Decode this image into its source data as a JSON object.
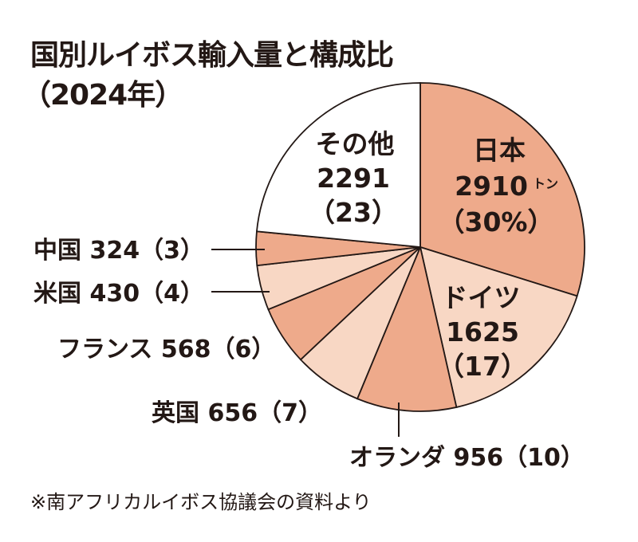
{
  "chart_data": {
    "type": "pie",
    "title": "国別ルイボス輸入量と構成比",
    "subtitle": "（2024年）",
    "unit": "トン",
    "slices": [
      {
        "label": "日本",
        "value": 2910,
        "percent": 30,
        "color": "#eeaa8b",
        "text": "2910",
        "pct_text": "（30%）"
      },
      {
        "label": "ドイツ",
        "value": 1625,
        "percent": 17,
        "color": "#f8d7c4",
        "text": "1625",
        "pct_text": "（17）"
      },
      {
        "label": "オランダ",
        "value": 956,
        "percent": 10,
        "color": "#eeaa8b",
        "text": "オランダ 956（10）"
      },
      {
        "label": "英国",
        "value": 656,
        "percent": 7,
        "color": "#f8d7c4",
        "text": "英国 656（7）"
      },
      {
        "label": "フランス",
        "value": 568,
        "percent": 6,
        "color": "#eeaa8b",
        "text": "フランス 568（6）"
      },
      {
        "label": "米国",
        "value": 430,
        "percent": 4,
        "color": "#f8d7c4",
        "text": "米国 430（4）"
      },
      {
        "label": "中国",
        "value": 324,
        "percent": 3,
        "color": "#eeaa8b",
        "text": "中国 324（3）"
      },
      {
        "label": "その他",
        "value": 2291,
        "percent": 23,
        "color": "#ffffff",
        "text": "2291",
        "pct_text": "（23）"
      }
    ],
    "source": "※南アフリカルイボス協議会の資料より"
  }
}
